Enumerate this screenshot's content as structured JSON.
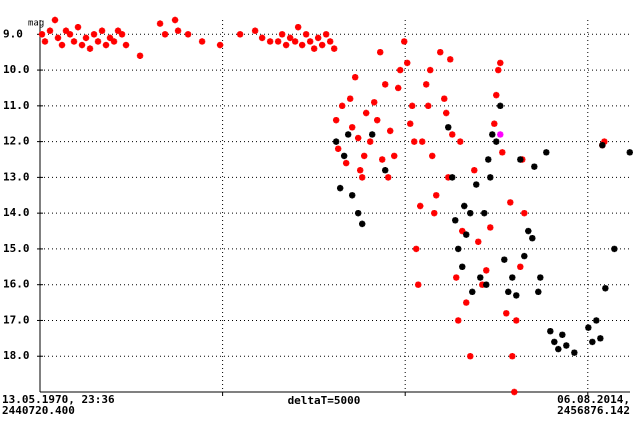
{
  "chart_data": {
    "type": "scatter",
    "y_label": "mag",
    "x_start_label": "13.05.1970, 23:36",
    "x_start_jd_label": "2440720.400",
    "x_end_label": "06.08.2014,",
    "x_end_jd_label": "2456876.142",
    "x_step_label": "deltaT=5000",
    "xlim": [
      2440720.4,
      2456876.142
    ],
    "xgrid": [
      2445720.4,
      2450720.4,
      2455720.4
    ],
    "ylim": [
      8.6,
      19.0
    ],
    "y_inverted": true,
    "yticks": [
      {
        "value": 9,
        "label": "9.0"
      },
      {
        "value": 10,
        "label": "10.0"
      },
      {
        "value": 11,
        "label": "11.0"
      },
      {
        "value": 12,
        "label": "12.0"
      },
      {
        "value": 13,
        "label": "13.0"
      },
      {
        "value": 14,
        "label": "14.0"
      },
      {
        "value": 15,
        "label": "15.0"
      },
      {
        "value": 16,
        "label": "16.0"
      },
      {
        "value": 17,
        "label": "17.0"
      },
      {
        "value": 18,
        "label": "18.0"
      }
    ],
    "grid": true,
    "series": [
      {
        "color": "#ff0000",
        "x": [
          2440775,
          2440857,
          2440994,
          2441131,
          2441213,
          2441323,
          2441432,
          2441542,
          2441652,
          2441761,
          2441871,
          2441980,
          2442090,
          2442200,
          2442309,
          2442419,
          2442528,
          2442638,
          2442748,
          2442857,
          2442967,
          2443076,
          2443460,
          2444008,
          2444145,
          2444419,
          2444501,
          2444775,
          2445159,
          2445652,
          2446200,
          2446611,
          2446803,
          2447022,
          2447241,
          2447351,
          2447460,
          2447570,
          2447707,
          2447789,
          2447899,
          2448008,
          2448118,
          2448228,
          2448337,
          2448447,
          2448556,
          2448666,
          2448776,
          2448830,
          2448885,
          2448995,
          2449104,
          2449214,
          2449269,
          2449351,
          2449433,
          2449488,
          2449543,
          2449598,
          2449652,
          2449762,
          2449872,
          2449954,
          2450036,
          2450091,
          2450173,
          2450255,
          2450310,
          2450420,
          2450529,
          2450584,
          2450694,
          2450776,
          2450858,
          2450913,
          2450968,
          2451022,
          2451077,
          2451132,
          2451187,
          2451296,
          2451351,
          2451406,
          2451461,
          2451516,
          2451570,
          2451680,
          2451790,
          2451844,
          2451899,
          2451954,
          2452009,
          2452118,
          2452173,
          2452228,
          2452283,
          2452392,
          2452502,
          2452612,
          2452721,
          2452831,
          2452940,
          2453050,
          2453160,
          2453214,
          2453269,
          2453324,
          2453379,
          2453488,
          2453598,
          2453653,
          2453708,
          2453762,
          2453872,
          2453927,
          2453982,
          2456119,
          2456174
        ],
        "values": [
          9.0,
          9.2,
          8.9,
          8.6,
          9.1,
          9.3,
          8.9,
          9.0,
          9.2,
          8.8,
          9.3,
          9.1,
          9.4,
          9.0,
          9.2,
          8.9,
          9.3,
          9.1,
          9.2,
          8.9,
          9.0,
          9.3,
          9.6,
          8.7,
          9.0,
          8.6,
          8.9,
          9.0,
          9.2,
          9.3,
          9.0,
          8.9,
          9.1,
          9.2,
          9.2,
          9.0,
          9.3,
          9.1,
          9.2,
          8.8,
          9.3,
          9.0,
          9.2,
          9.4,
          9.1,
          9.3,
          9.0,
          9.2,
          9.4,
          11.4,
          12.2,
          11.0,
          12.6,
          10.8,
          11.6,
          10.2,
          11.9,
          12.8,
          13.0,
          12.4,
          11.2,
          12.0,
          10.9,
          11.4,
          9.5,
          12.5,
          10.4,
          13.0,
          11.7,
          12.4,
          10.5,
          10.0,
          9.2,
          9.8,
          11.5,
          11.0,
          12.0,
          15.0,
          16.0,
          13.8,
          12.0,
          10.4,
          11.0,
          10.0,
          12.4,
          14.0,
          13.5,
          9.5,
          10.8,
          11.2,
          13.0,
          9.7,
          11.8,
          15.8,
          17.0,
          12.0,
          14.5,
          16.5,
          18.0,
          12.8,
          14.8,
          16.0,
          15.6,
          14.4,
          11.5,
          10.7,
          10.0,
          9.8,
          12.3,
          16.8,
          13.7,
          18.0,
          19.0,
          17.0,
          15.5,
          12.5,
          14.0,
          12.1,
          12.0
        ]
      },
      {
        "color": "#000000",
        "x": [
          2448830,
          2448940,
          2449049,
          2449159,
          2449269,
          2449433,
          2449543,
          2449817,
          2450173,
          2451899,
          2452009,
          2452091,
          2452173,
          2452283,
          2452338,
          2452392,
          2452502,
          2452557,
          2452666,
          2452776,
          2452886,
          2452940,
          2452995,
          2453050,
          2453105,
          2453214,
          2453324,
          2453434,
          2453543,
          2453653,
          2453762,
          2453872,
          2453982,
          2454091,
          2454201,
          2454256,
          2454365,
          2454420,
          2454584,
          2454694,
          2454804,
          2454913,
          2455023,
          2455132,
          2455352,
          2455735,
          2455845,
          2455954,
          2456064,
          2456119,
          2456201,
          2456448,
          2456870
        ],
        "values": [
          12.0,
          13.3,
          12.4,
          11.8,
          13.5,
          14.0,
          14.3,
          11.8,
          12.8,
          11.6,
          13.0,
          14.2,
          15.0,
          15.5,
          13.8,
          14.6,
          14.0,
          16.2,
          13.2,
          15.8,
          14.0,
          16.0,
          12.5,
          13.0,
          11.8,
          12.0,
          11.0,
          15.3,
          16.2,
          15.8,
          16.3,
          12.5,
          15.2,
          14.5,
          14.7,
          12.7,
          16.2,
          15.8,
          12.3,
          17.3,
          17.6,
          17.8,
          17.4,
          17.7,
          17.9,
          17.2,
          17.6,
          17.0,
          17.5,
          12.1,
          16.1,
          15.0,
          12.3
        ]
      },
      {
        "color": "#ff00ff",
        "x": [
          2453324
        ],
        "values": [
          11.8
        ]
      }
    ]
  }
}
